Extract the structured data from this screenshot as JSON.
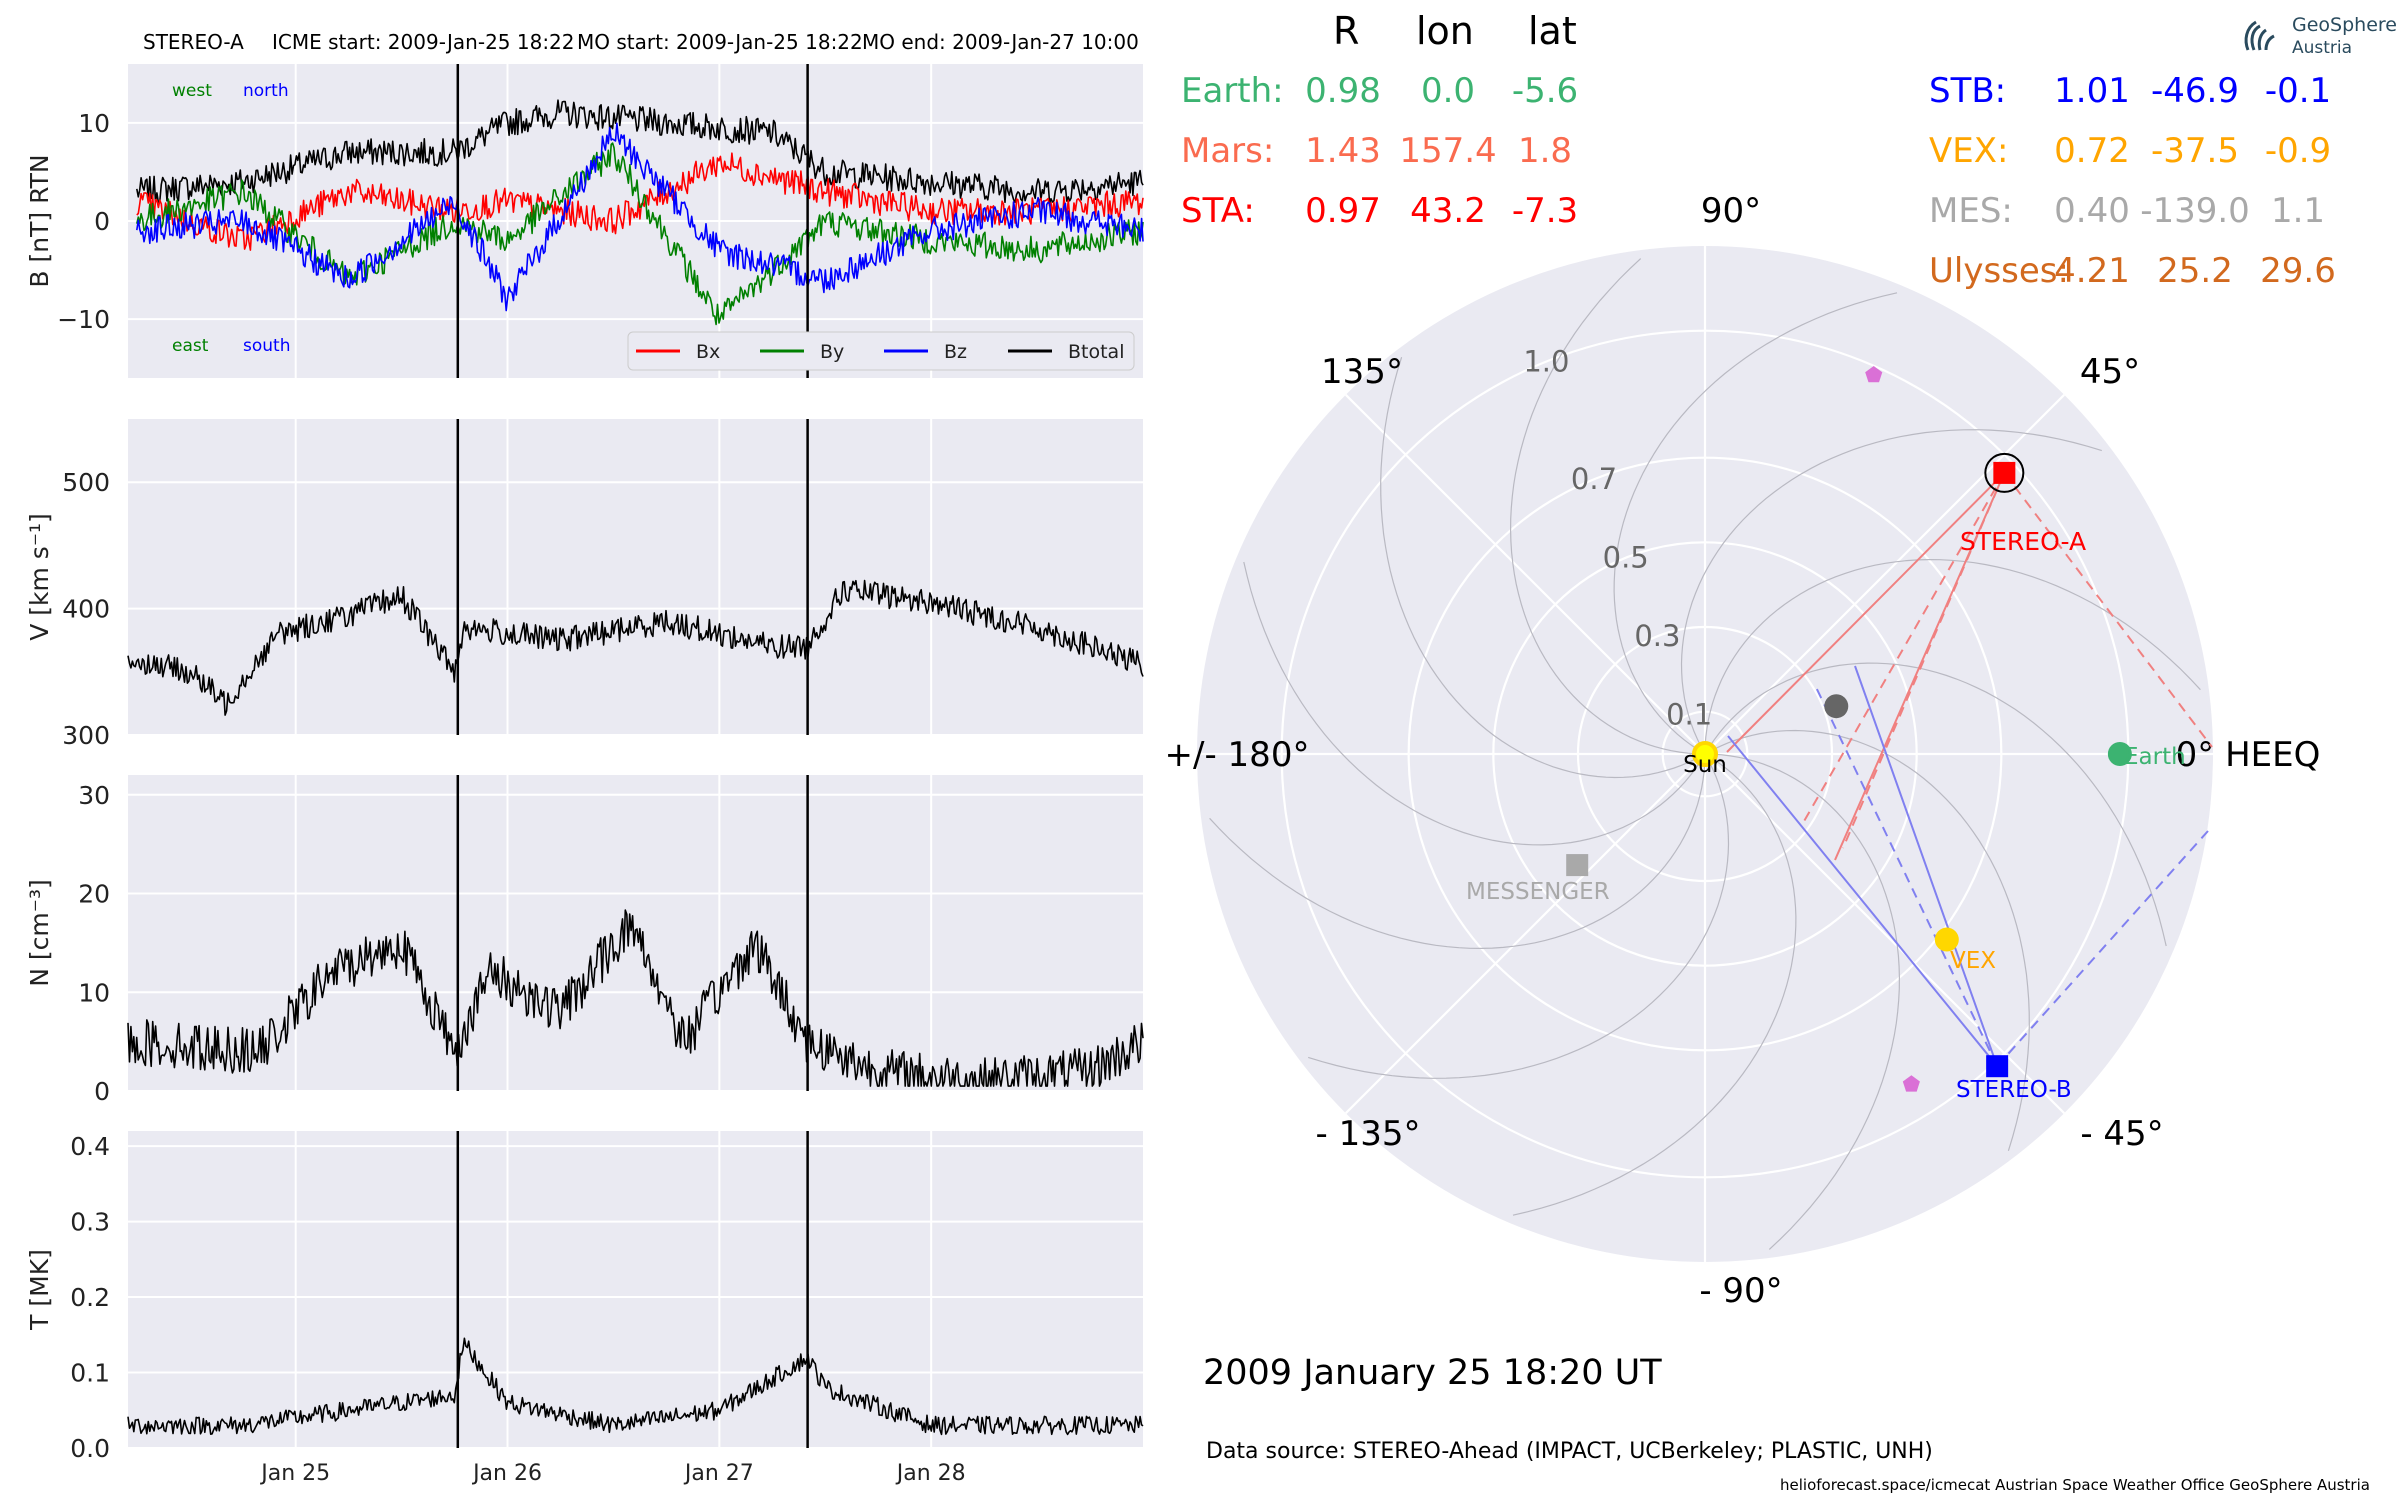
{
  "header": {
    "spacecraft": "STEREO-A",
    "icme_start": "ICME start: 2009-Jan-25 18:22",
    "mo_start": "MO start: 2009-Jan-25 18:22",
    "mo_end": "MO end: 2009-Jan-27 10:00"
  },
  "logo": {
    "line1": "GeoSphere",
    "line2": "Austria"
  },
  "positions_table": {
    "columns": [
      "R",
      "lon",
      "lat"
    ],
    "left_rows": [
      {
        "name": "Earth:",
        "R": "0.98",
        "lon": "0.0",
        "lat": "-5.6",
        "color": "#3CB371"
      },
      {
        "name": "Mars:",
        "R": "1.43",
        "lon": "157.4",
        "lat": "1.8",
        "color": "#FA6B4F"
      },
      {
        "name": "STA:",
        "R": "0.97",
        "lon": "43.2",
        "lat": "-7.3",
        "color": "#FF0000"
      }
    ],
    "right_rows": [
      {
        "name": "STB:",
        "R": "1.01",
        "lon": "-46.9",
        "lat": "-0.1",
        "color": "#0000FF"
      },
      {
        "name": "VEX:",
        "R": "0.72",
        "lon": "-37.5",
        "lat": "-0.9",
        "color": "#FFA500"
      },
      {
        "name": "MES:",
        "R": "0.40",
        "lon": "-139.0",
        "lat": "1.1",
        "color": "#A9A9A9"
      },
      {
        "name": "Ulysses:",
        "R": "4.21",
        "lon": "25.2",
        "lat": "29.6",
        "color": "#D2691E"
      }
    ]
  },
  "footer": {
    "datetime": "2009 January 25  18:20 UT",
    "data_source": "Data source: STEREO-Ahead (IMPACT, UCBerkeley; PLASTIC, UNH)",
    "credits": "helioforecast.space/icmecat   Austrian Space Weather Office   GeoSphere Austria"
  },
  "chart_data": [
    {
      "type": "line",
      "panel": "B",
      "ylabel": "B [nT] RTN",
      "ylim": [
        -16,
        16
      ],
      "yticks": [
        "10",
        "0",
        "−10"
      ],
      "annotations": {
        "top_left": "west",
        "top_right": "north",
        "bottom_left": "east",
        "bottom_right": "south"
      },
      "legend": [
        "Bx",
        "By",
        "Bz",
        "Btotal"
      ],
      "legend_position": "lower right",
      "x_range_days": [
        "2009-01-24 05:00",
        "2009-01-29 00:00"
      ],
      "event_lines": [
        "2009-01-25 18:22",
        "2009-01-27 10:00"
      ],
      "series": [
        {
          "name": "Btotal",
          "color": "#000000",
          "x": [
            "2009-01-24 06:00",
            "2009-01-24 18:00",
            "2009-01-25 06:00",
            "2009-01-25 18:00",
            "2009-01-26 00:00",
            "2009-01-26 06:00",
            "2009-01-26 18:00",
            "2009-01-27 06:00",
            "2009-01-27 12:00",
            "2009-01-28 00:00",
            "2009-01-28 12:00",
            "2009-01-29 00:00"
          ],
          "y": [
            3,
            4,
            7,
            7,
            10,
            11,
            10,
            9,
            5,
            4,
            3,
            4
          ]
        },
        {
          "name": "Bx",
          "color": "#FF0000",
          "x": [
            "2009-01-24 06:00",
            "2009-01-24 18:00",
            "2009-01-25 06:00",
            "2009-01-25 18:00",
            "2009-01-26 00:00",
            "2009-01-26 12:00",
            "2009-01-27 00:00",
            "2009-01-27 12:00",
            "2009-01-28 00:00",
            "2009-01-28 12:00",
            "2009-01-29 00:00"
          ],
          "y": [
            2,
            -2,
            3,
            1,
            2,
            0,
            6,
            3,
            1,
            1,
            2
          ]
        },
        {
          "name": "By",
          "color": "#008000",
          "x": [
            "2009-01-24 06:00",
            "2009-01-24 18:00",
            "2009-01-25 06:00",
            "2009-01-25 18:00",
            "2009-01-26 00:00",
            "2009-01-26 12:00",
            "2009-01-27 00:00",
            "2009-01-27 12:00",
            "2009-01-28 00:00",
            "2009-01-28 12:00",
            "2009-01-29 00:00"
          ],
          "y": [
            0,
            3,
            -6,
            0,
            -2,
            7,
            -10,
            0,
            -2,
            -3,
            -1
          ]
        },
        {
          "name": "Bz",
          "color": "#0000FF",
          "x": [
            "2009-01-24 06:00",
            "2009-01-24 18:00",
            "2009-01-25 06:00",
            "2009-01-25 18:00",
            "2009-01-26 00:00",
            "2009-01-26 12:00",
            "2009-01-27 00:00",
            "2009-01-27 12:00",
            "2009-01-28 00:00",
            "2009-01-28 12:00",
            "2009-01-29 00:00"
          ],
          "y": [
            -1,
            0,
            -6,
            2,
            -8,
            9,
            -3,
            -6,
            -1,
            1,
            -1
          ]
        }
      ]
    },
    {
      "type": "line",
      "panel": "V",
      "ylabel": "V [km s⁻¹]",
      "ylim": [
        300,
        550
      ],
      "yticks": [
        "500",
        "400",
        "300"
      ],
      "series": [
        {
          "name": "V",
          "color": "#000000",
          "x": [
            "2009-01-24 05:00",
            "2009-01-24 12:00",
            "2009-01-24 16:00",
            "2009-01-24 22:00",
            "2009-01-25 06:00",
            "2009-01-25 12:00",
            "2009-01-25 18:00",
            "2009-01-25 19:00",
            "2009-01-26 06:00",
            "2009-01-26 18:00",
            "2009-01-27 06:00",
            "2009-01-27 10:00",
            "2009-01-27 14:00",
            "2009-01-28 00:00",
            "2009-01-28 12:00",
            "2009-01-29 00:00"
          ],
          "y": [
            360,
            350,
            325,
            380,
            395,
            410,
            350,
            385,
            375,
            390,
            370,
            370,
            415,
            405,
            385,
            355
          ]
        }
      ]
    },
    {
      "type": "line",
      "panel": "N",
      "ylabel": "N [cm⁻³]",
      "ylim": [
        0,
        32
      ],
      "yticks": [
        "30",
        "20",
        "10",
        "0"
      ],
      "series": [
        {
          "name": "N",
          "color": "#000000",
          "x": [
            "2009-01-24 05:00",
            "2009-01-24 20:00",
            "2009-01-25 04:00",
            "2009-01-25 12:00",
            "2009-01-25 18:00",
            "2009-01-25 22:00",
            "2009-01-26 06:00",
            "2009-01-26 14:00",
            "2009-01-26 20:00",
            "2009-01-27 04:00",
            "2009-01-27 10:00",
            "2009-01-27 18:00",
            "2009-01-28 06:00",
            "2009-01-28 18:00",
            "2009-01-29 00:00"
          ],
          "y": [
            5,
            4,
            12,
            15,
            4,
            12,
            8,
            17,
            5,
            15,
            5,
            2,
            1,
            2,
            5
          ]
        }
      ]
    },
    {
      "type": "line",
      "panel": "T",
      "ylabel": "T [MK]",
      "ylim": [
        0,
        0.42
      ],
      "yticks": [
        "0.4",
        "0.3",
        "0.2",
        "0.1",
        "0.0"
      ],
      "xticks": [
        "Jan 25",
        "Jan 26",
        "Jan 27",
        "Jan 28"
      ],
      "series": [
        {
          "name": "T",
          "color": "#000000",
          "x": [
            "2009-01-24 05:00",
            "2009-01-24 18:00",
            "2009-01-25 06:00",
            "2009-01-25 18:00",
            "2009-01-25 19:00",
            "2009-01-26 00:00",
            "2009-01-26 12:00",
            "2009-01-27 00:00",
            "2009-01-27 10:00",
            "2009-01-27 12:00",
            "2009-01-28 00:00",
            "2009-01-29 00:00"
          ],
          "y": [
            0.03,
            0.03,
            0.05,
            0.07,
            0.14,
            0.06,
            0.03,
            0.05,
            0.12,
            0.08,
            0.03,
            0.03
          ]
        }
      ]
    },
    {
      "type": "scatter",
      "panel": "polar",
      "coordinate_system": "HEEQ",
      "angle_labels": {
        "0": "0° HEEQ",
        "45": "45°",
        "90": "90°",
        "135": "135°",
        "180": "+/- 180°",
        "-135": "- 135°",
        "-90": "- 90°",
        "-45": "- 45°"
      },
      "radial_ticks": [
        "0.1",
        "0.3",
        "0.5",
        "0.7",
        "1.0"
      ],
      "rlim": [
        0,
        1.2
      ],
      "bodies": [
        {
          "label": "Sun",
          "r": 0.0,
          "lon": 0,
          "color": "#FFFF00",
          "marker": "circle"
        },
        {
          "label": "Earth",
          "r": 0.98,
          "lon": 0.0,
          "color": "#3CB371",
          "marker": "circle"
        },
        {
          "label": "STEREO-A",
          "r": 0.97,
          "lon": 43.2,
          "color": "#FF0000",
          "marker": "square"
        },
        {
          "label": "STEREO-B",
          "r": 1.01,
          "lon": -46.9,
          "color": "#0000FF",
          "marker": "square"
        },
        {
          "label": "VEX",
          "r": 0.72,
          "lon": -37.5,
          "color": "#FFD700",
          "marker": "circle"
        },
        {
          "label": "MESSENGER",
          "r": 0.4,
          "lon": -139.0,
          "color": "#A9A9A9",
          "marker": "square"
        },
        {
          "label": "",
          "r": 0.33,
          "lon": 20,
          "color": "#666666",
          "marker": "circle"
        },
        {
          "label": "",
          "r": 0.98,
          "lon": 66,
          "color": "#DA70D6",
          "marker": "pentagon"
        },
        {
          "label": "",
          "r": 0.92,
          "lon": -58,
          "color": "#DA70D6",
          "marker": "pentagon"
        }
      ]
    }
  ]
}
